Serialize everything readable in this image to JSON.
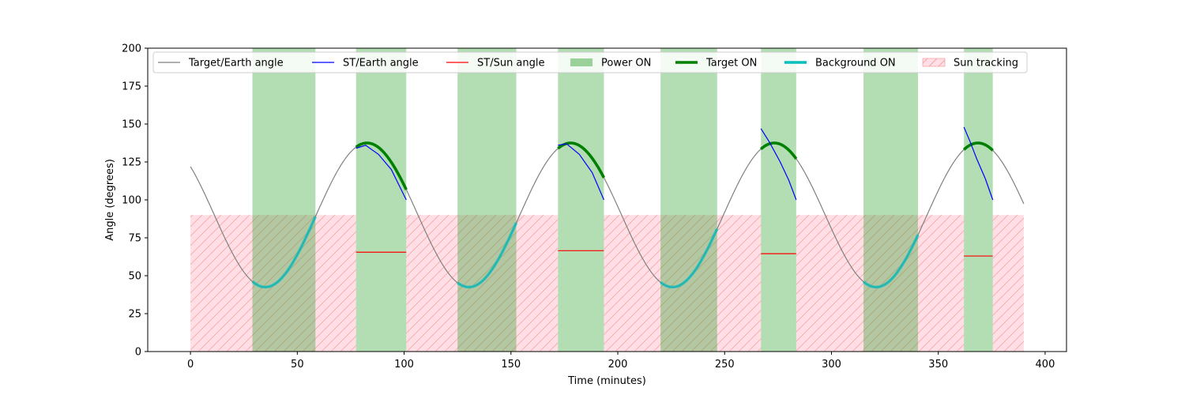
{
  "chart_data": {
    "type": "line",
    "xlabel": "Time (minutes)",
    "ylabel": "Angle (degrees)",
    "xlim": [
      -20,
      410
    ],
    "ylim": [
      0,
      200
    ],
    "xticks": [
      0,
      50,
      100,
      150,
      200,
      250,
      300,
      350,
      400
    ],
    "yticks": [
      0,
      25,
      50,
      75,
      100,
      125,
      150,
      175,
      200
    ],
    "grid": false,
    "legend_placement": "top, spanning full width",
    "target_earth_model": {
      "mean": 90,
      "amplitude": 47.5,
      "period_minutes": 95.3,
      "minimum_at_minutes": 35,
      "t_start": 0,
      "t_end": 390
    },
    "power_on_intervals": [
      [
        29,
        58.5
      ],
      [
        77.5,
        101
      ],
      [
        125,
        152.5
      ],
      [
        172,
        193.5
      ],
      [
        220,
        246.5
      ],
      [
        267,
        283.5
      ],
      [
        315,
        340.5
      ],
      [
        362,
        375.5
      ]
    ],
    "sun_tracking_intervals": [
      [
        0,
        77.5
      ],
      [
        101,
        172
      ],
      [
        193.5,
        267
      ],
      [
        283.5,
        362
      ],
      [
        375.5,
        390
      ]
    ],
    "sun_tracking_level": 90,
    "target_on_intervals": [
      [
        77.5,
        101
      ],
      [
        172,
        193.5
      ],
      [
        267,
        283.5
      ],
      [
        362,
        375.5
      ]
    ],
    "background_on_intervals": [
      [
        29,
        58.5
      ],
      [
        125,
        152.5
      ],
      [
        220,
        246.5
      ],
      [
        315,
        340.5
      ]
    ],
    "st_earth_segments": [
      {
        "x": [
          77.5,
          82,
          88,
          94,
          101
        ],
        "y": [
          134,
          136,
          130,
          120,
          100
        ]
      },
      {
        "x": [
          172,
          176,
          182,
          188,
          193.5
        ],
        "y": [
          136,
          137,
          130,
          118,
          100
        ]
      },
      {
        "x": [
          267,
          271,
          276,
          280,
          283.5
        ],
        "y": [
          147,
          138,
          125,
          113,
          100
        ]
      },
      {
        "x": [
          362,
          365,
          368,
          372,
          375.5
        ],
        "y": [
          148,
          138,
          127,
          114,
          100
        ]
      }
    ],
    "st_sun_segments": [
      {
        "x": [
          77.5,
          101
        ],
        "y": [
          65.5,
          65.5
        ]
      },
      {
        "x": [
          172,
          193.5
        ],
        "y": [
          66.5,
          66.5
        ]
      },
      {
        "x": [
          267,
          283.5
        ],
        "y": [
          64.5,
          64.5
        ]
      },
      {
        "x": [
          362,
          375.5
        ],
        "y": [
          63,
          63
        ]
      }
    ],
    "legend": [
      {
        "label": "Target/Earth angle",
        "kind": "line",
        "color": "#808080"
      },
      {
        "label": "ST/Earth angle",
        "kind": "line",
        "color": "#0000ff"
      },
      {
        "label": "ST/Sun angle",
        "kind": "line",
        "color": "#ff0000"
      },
      {
        "label": "Power ON",
        "kind": "patch",
        "color": "#2ca02c"
      },
      {
        "label": "Target ON",
        "kind": "thick-line",
        "color": "#008000"
      },
      {
        "label": "Background ON",
        "kind": "thick-line",
        "color": "#00bfbf"
      },
      {
        "label": "Sun tracking",
        "kind": "hatch-patch",
        "color": "#ffc0cb"
      }
    ],
    "colors": {
      "target_earth": "#808080",
      "st_earth": "#0000ff",
      "st_sun": "#ff0000",
      "power_on": "#2ca02c",
      "target_on": "#008000",
      "background_on": "#00bfbf",
      "sun_tracking_fill": "#ffc0cb",
      "sun_tracking_hatch": "#f7a6a6"
    }
  }
}
